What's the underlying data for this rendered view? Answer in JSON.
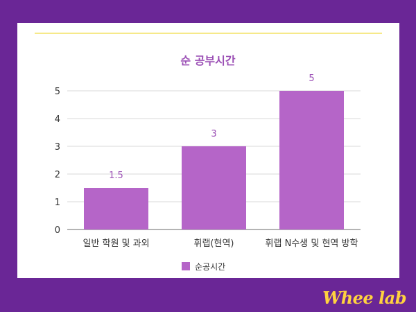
{
  "brand": {
    "logo_text": "Whee lab"
  },
  "colors": {
    "background": "#6a2696",
    "bar": "#b565c8",
    "title": "#9b4fb5",
    "axis_text": "#333333",
    "logo": "#ffd23f"
  },
  "chart_data": {
    "type": "bar",
    "title": "순 공부시간",
    "categories": [
      "일반 학원 및 과외",
      "휘랩(현역)",
      "휘랩 N수생 및 현역 방학"
    ],
    "series": [
      {
        "name": "순공시간",
        "values": [
          1.5,
          3,
          5
        ],
        "data_labels": [
          "1.5",
          "3",
          "5"
        ]
      }
    ],
    "xlabel": "",
    "ylabel": "",
    "ylim": [
      0,
      5
    ],
    "yticks": [
      "0",
      "1",
      "2",
      "3",
      "4",
      "5"
    ],
    "grid": true,
    "legend": "bottom"
  }
}
